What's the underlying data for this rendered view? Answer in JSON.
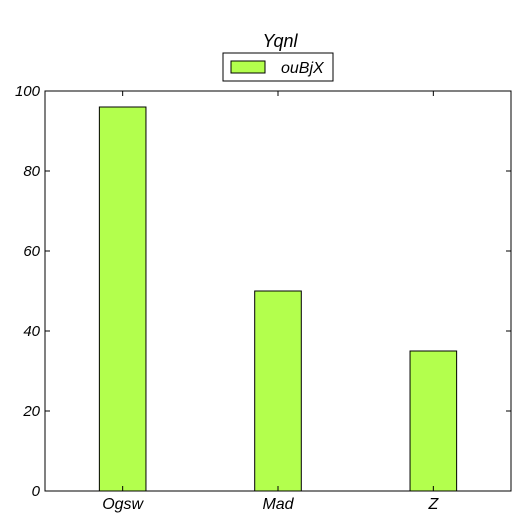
{
  "chart_data": {
    "type": "bar",
    "title": "Yqnl",
    "xlabel": "",
    "ylabel": "",
    "categories": [
      "Ogsw",
      "Mad",
      "Z"
    ],
    "series": [
      {
        "name": "ouBjX",
        "values": [
          96,
          50,
          35
        ],
        "color": "#b3ff4d"
      }
    ],
    "ylim": [
      0,
      100
    ],
    "yticks": [
      0,
      20,
      40,
      60,
      80,
      100
    ],
    "ytick_labels": [
      "0",
      "20",
      "40",
      "60",
      "80",
      "100"
    ],
    "grid": false,
    "legend_position": "top-center"
  }
}
